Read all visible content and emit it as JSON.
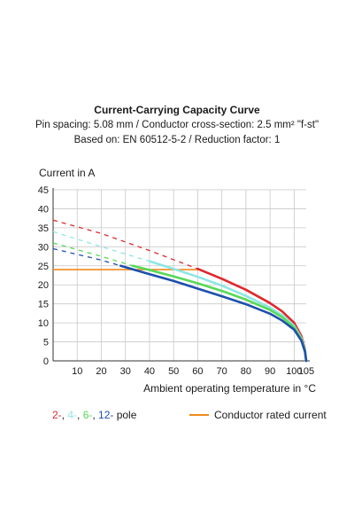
{
  "chart_data": {
    "type": "line",
    "title": "Current-Carrying Capacity Curve",
    "subtitle_lines": [
      "Pin spacing: 5.08 mm / Conductor cross-section: 2.5 mm² \"f-st\"",
      "Based on: EN 60512-5-2 / Reduction factor: 1"
    ],
    "ylabel": "Current in A",
    "xlabel": "Ambient operating temperature in °C",
    "xlim": [
      0,
      105
    ],
    "ylim": [
      0,
      45
    ],
    "x_ticks": [
      "10",
      "20",
      "30",
      "40",
      "50",
      "60",
      "70",
      "80",
      "90",
      "100",
      "105"
    ],
    "y_ticks": [
      "0",
      "5",
      "10",
      "15",
      "20",
      "25",
      "30",
      "35",
      "40",
      "45"
    ],
    "grid": true,
    "series": [
      {
        "name": "2-",
        "color": "#e0282c",
        "dashed": [
          [
            0,
            37
          ],
          [
            20,
            33.5
          ],
          [
            40,
            29
          ],
          [
            60,
            24.2
          ]
        ],
        "solid": [
          [
            60,
            24.2
          ],
          [
            70,
            21.6
          ],
          [
            80,
            18.7
          ],
          [
            90,
            15.2
          ],
          [
            95,
            13
          ],
          [
            100,
            10
          ],
          [
            103,
            6.5
          ],
          [
            104.5,
            3
          ],
          [
            105,
            0
          ]
        ]
      },
      {
        "name": "4-",
        "color": "#8ee6e4",
        "dashed": [
          [
            0,
            34
          ],
          [
            20,
            30
          ],
          [
            40,
            26.2
          ]
        ],
        "solid": [
          [
            40,
            26.2
          ],
          [
            50,
            24.2
          ],
          [
            60,
            22.1
          ],
          [
            70,
            19.8
          ],
          [
            80,
            17.1
          ],
          [
            90,
            14
          ],
          [
            95,
            12
          ],
          [
            100,
            9.2
          ],
          [
            103,
            6
          ],
          [
            104.5,
            2.8
          ],
          [
            105,
            0
          ]
        ]
      },
      {
        "name": "6-",
        "color": "#57d957",
        "dashed": [
          [
            0,
            31
          ],
          [
            20,
            27.5
          ],
          [
            33,
            25
          ]
        ],
        "solid": [
          [
            33,
            25
          ],
          [
            40,
            23.9
          ],
          [
            50,
            22.2
          ],
          [
            60,
            20.4
          ],
          [
            70,
            18.4
          ],
          [
            80,
            16.1
          ],
          [
            90,
            13.4
          ],
          [
            95,
            11.5
          ],
          [
            100,
            8.8
          ],
          [
            103,
            5.7
          ],
          [
            104.5,
            2.6
          ],
          [
            105,
            0
          ]
        ]
      },
      {
        "name": "12-",
        "color": "#1d4fae",
        "dashed": [
          [
            0,
            29.5
          ],
          [
            20,
            26.5
          ],
          [
            28,
            25
          ]
        ],
        "solid": [
          [
            28,
            25
          ],
          [
            40,
            22.8
          ],
          [
            50,
            21
          ],
          [
            60,
            19
          ],
          [
            70,
            17
          ],
          [
            80,
            14.9
          ],
          [
            90,
            12.4
          ],
          [
            95,
            10.6
          ],
          [
            100,
            8.2
          ],
          [
            103,
            5.3
          ],
          [
            104.5,
            2.4
          ],
          [
            105,
            0
          ]
        ]
      }
    ],
    "rated_current": {
      "name": "Conductor rated current",
      "value": 24,
      "color": "#f08a1c",
      "x_end": 60
    }
  },
  "legend": {
    "left": [
      {
        "text": "2-",
        "color": "#e0282c"
      },
      {
        "text": ", ",
        "color": "#1a1a1a"
      },
      {
        "text": "4-",
        "color": "#8ee6e4"
      },
      {
        "text": ", ",
        "color": "#1a1a1a"
      },
      {
        "text": "6-",
        "color": "#57d957"
      },
      {
        "text": ", ",
        "color": "#1a1a1a"
      },
      {
        "text": "12-",
        "color": "#1d4fae"
      },
      {
        "text": " pole",
        "color": "#1a1a1a"
      }
    ],
    "right_label": "Conductor rated current"
  }
}
